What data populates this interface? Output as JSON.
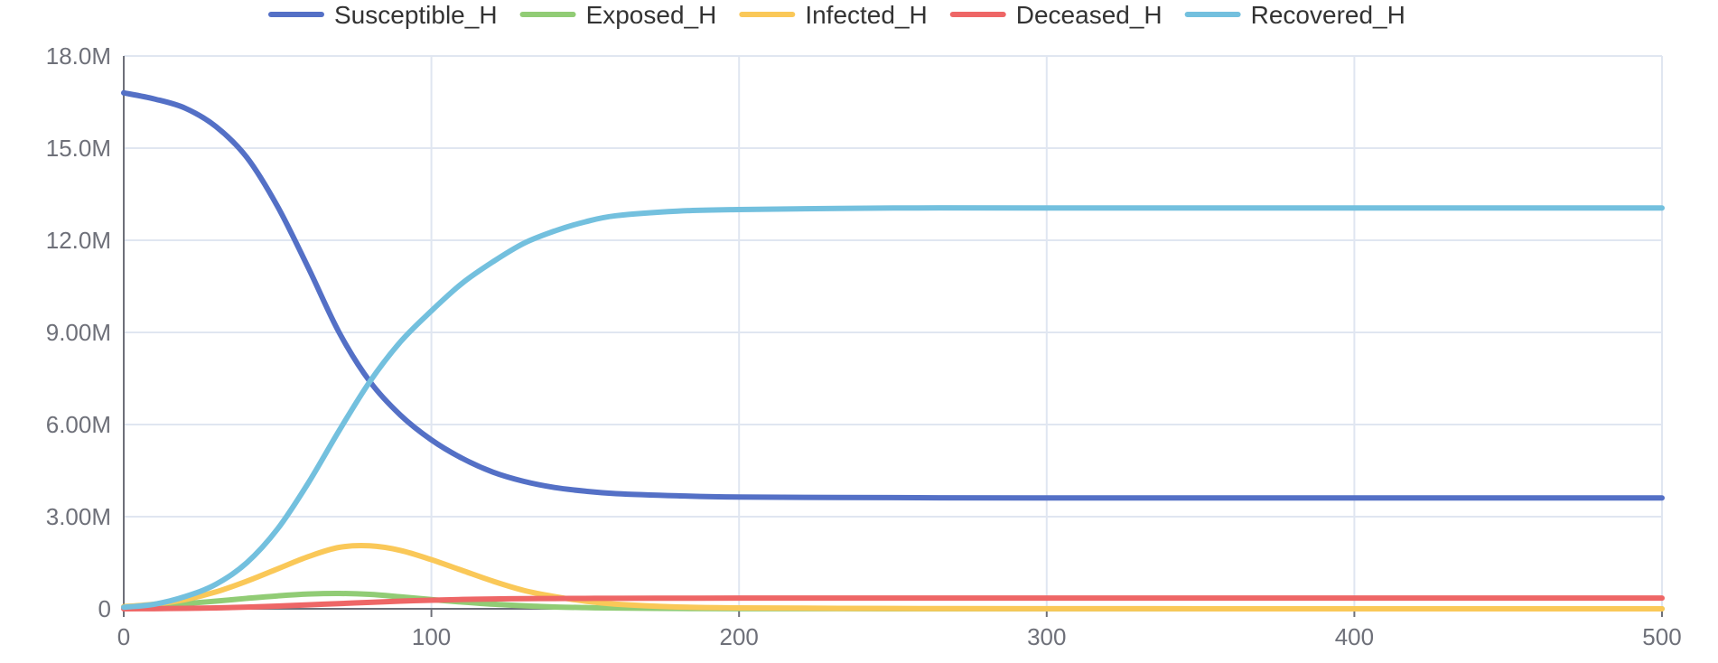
{
  "chart_data": {
    "type": "line",
    "title": "",
    "xlabel": "",
    "ylabel": "",
    "xlim": [
      0,
      500
    ],
    "ylim": [
      0,
      18000000
    ],
    "x_ticks": [
      0,
      100,
      200,
      300,
      400,
      500
    ],
    "x_tick_labels": [
      "0",
      "100",
      "200",
      "300",
      "400",
      "500"
    ],
    "y_ticks": [
      0,
      3000000,
      6000000,
      9000000,
      12000000,
      15000000,
      18000000
    ],
    "y_tick_labels": [
      "0",
      "3.00M",
      "6.00M",
      "9.00M",
      "12.0M",
      "15.0M",
      "18.0M"
    ],
    "grid": true,
    "legend_position": "top-center",
    "x": [
      0,
      10,
      20,
      30,
      40,
      50,
      60,
      70,
      80,
      90,
      100,
      110,
      120,
      130,
      140,
      150,
      160,
      180,
      200,
      250,
      300,
      400,
      500
    ],
    "series": [
      {
        "name": "Susceptible_H",
        "color": "#5470c6",
        "values": [
          16800000,
          16600000,
          16300000,
          15700000,
          14700000,
          13100000,
          11100000,
          9000000,
          7400000,
          6300000,
          5500000,
          4900000,
          4450000,
          4150000,
          3950000,
          3830000,
          3750000,
          3680000,
          3640000,
          3620000,
          3610000,
          3610000,
          3610000
        ]
      },
      {
        "name": "Exposed_H",
        "color": "#91cc75",
        "values": [
          50000,
          100000,
          170000,
          250000,
          340000,
          420000,
          480000,
          500000,
          470000,
          390000,
          300000,
          220000,
          150000,
          100000,
          60000,
          40000,
          25000,
          10000,
          5000,
          1000,
          0,
          0,
          0
        ]
      },
      {
        "name": "Infected_H",
        "color": "#fac858",
        "values": [
          70000,
          150000,
          300000,
          550000,
          900000,
          1300000,
          1700000,
          2000000,
          2050000,
          1900000,
          1600000,
          1250000,
          900000,
          600000,
          400000,
          250000,
          150000,
          60000,
          30000,
          10000,
          5000,
          0,
          0
        ]
      },
      {
        "name": "Deceased_H",
        "color": "#ee6666",
        "values": [
          0,
          5000,
          15000,
          30000,
          55000,
          90000,
          130000,
          170000,
          210000,
          250000,
          280000,
          305000,
          320000,
          330000,
          335000,
          340000,
          343000,
          346000,
          348000,
          350000,
          350000,
          350000,
          350000
        ]
      },
      {
        "name": "Recovered_H",
        "color": "#73c0de",
        "values": [
          50000,
          150000,
          400000,
          800000,
          1500000,
          2600000,
          4100000,
          5800000,
          7400000,
          8700000,
          9700000,
          10600000,
          11300000,
          11900000,
          12300000,
          12600000,
          12800000,
          12950000,
          13000000,
          13050000,
          13050000,
          13050000,
          13050000
        ]
      }
    ]
  }
}
